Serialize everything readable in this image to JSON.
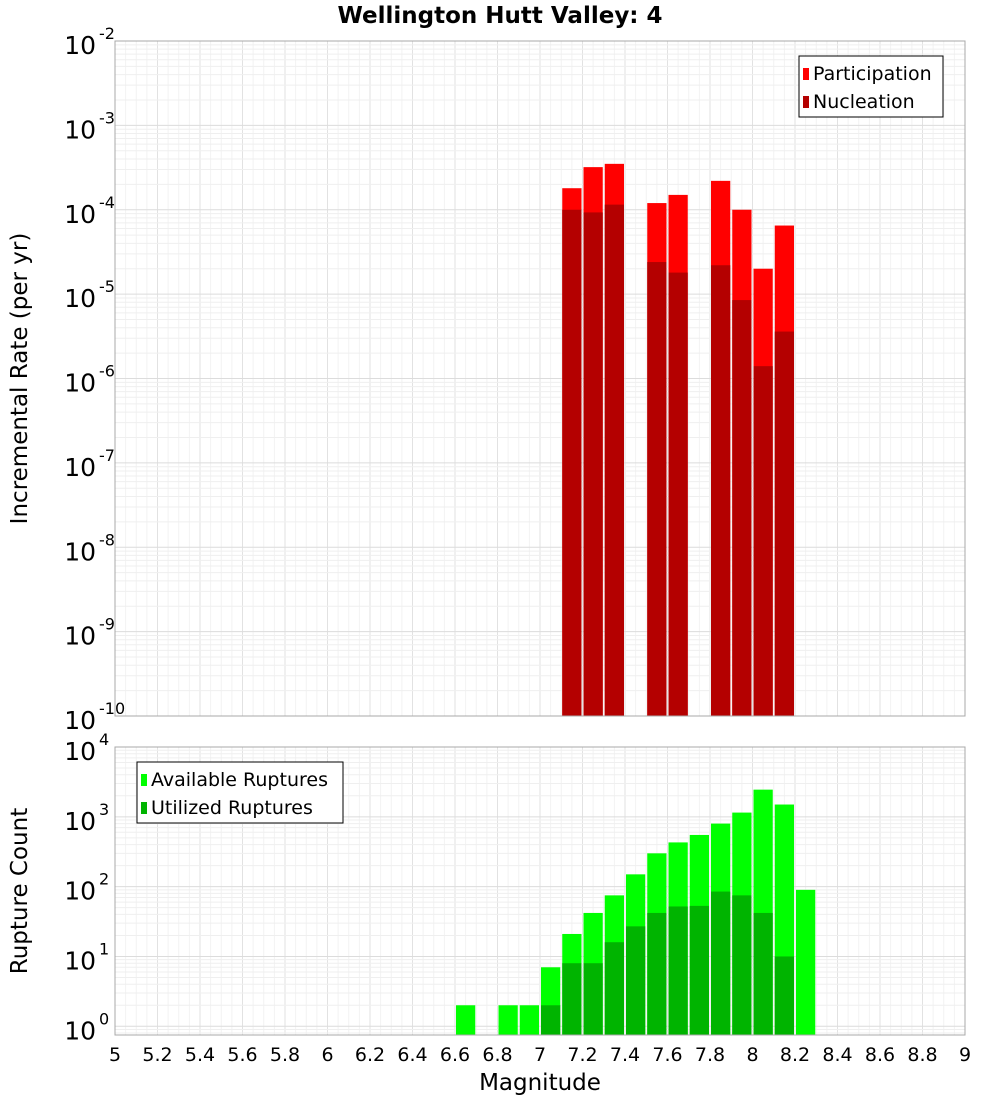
{
  "chart_data": {
    "title": "Wellington Hutt Valley: 4",
    "xlabel": "Magnitude",
    "xlim": [
      5,
      9
    ],
    "x_ticks": [
      "5",
      "5.2",
      "5.4",
      "5.6",
      "5.8",
      "6",
      "6.2",
      "6.4",
      "6.6",
      "6.8",
      "7",
      "7.2",
      "7.4",
      "7.6",
      "7.8",
      "8",
      "8.2",
      "8.4",
      "8.6",
      "8.8",
      "9"
    ],
    "panels": [
      {
        "type": "bar",
        "ylabel": "Incremental Rate (per yr)",
        "yscale": "log",
        "ylim": [
          1e-10,
          0.01
        ],
        "y_tick_exponents": [
          -10,
          -9,
          -8,
          -7,
          -6,
          -5,
          -4,
          -3,
          -2
        ],
        "grid": true,
        "legend_position": "top-right",
        "x": [
          7.15,
          7.25,
          7.35,
          7.55,
          7.65,
          7.85,
          7.95,
          8.05,
          8.15
        ],
        "series": [
          {
            "name": "Participation",
            "color": "#ff0000",
            "values": [
              0.00018,
              0.00032,
              0.00035,
              0.00012,
              0.00015,
              0.00022,
              0.0001,
              2e-05,
              6.5e-05
            ]
          },
          {
            "name": "Nucleation",
            "color": "#b40000",
            "values": [
              0.0001,
              9.3e-05,
              0.000115,
              2.4e-05,
              1.8e-05,
              2.2e-05,
              8.5e-06,
              1.4e-06,
              3.6e-06
            ]
          }
        ]
      },
      {
        "type": "bar",
        "ylabel": "Rupture Count",
        "yscale": "log",
        "ylim": [
          0.75,
          10000
        ],
        "y_tick_exponents": [
          0,
          1,
          2,
          3,
          4
        ],
        "grid": true,
        "legend_position": "top-left",
        "x": [
          6.65,
          6.85,
          6.95,
          7.05,
          7.15,
          7.25,
          7.35,
          7.45,
          7.55,
          7.65,
          7.75,
          7.85,
          7.95,
          8.05,
          8.15,
          8.25
        ],
        "series": [
          {
            "name": "Available Ruptures",
            "color": "#00ff00",
            "values": [
              2,
              2,
              2,
              7,
              21,
              42,
              75,
              150,
              300,
              430,
              550,
              800,
              1150,
              2450,
              1500,
              90
            ]
          },
          {
            "name": "Utilized Ruptures",
            "color": "#00b400",
            "values": [
              0,
              0,
              0,
              2,
              8,
              8,
              16,
              27,
              42,
              52,
              53,
              85,
              75,
              42,
              10,
              0
            ]
          }
        ]
      }
    ]
  }
}
